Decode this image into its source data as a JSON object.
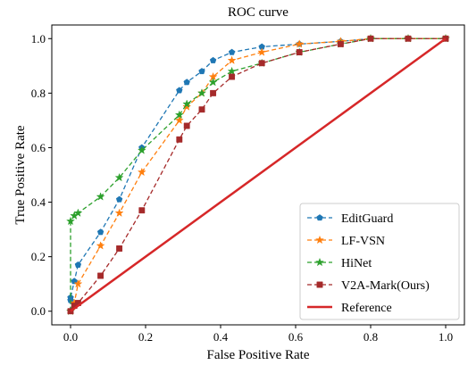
{
  "chart_data": {
    "type": "line",
    "title": "ROC curve",
    "xlabel": "False Positive Rate",
    "ylabel": "True Positive Rate",
    "xlim": [
      -0.05,
      1.05
    ],
    "ylim": [
      -0.05,
      1.05
    ],
    "xticks": [
      "0.0",
      "0.2",
      "0.4",
      "0.6",
      "0.8",
      "1.0"
    ],
    "yticks": [
      "0.0",
      "0.2",
      "0.4",
      "0.6",
      "0.8",
      "1.0"
    ],
    "grid": false,
    "legend_position": "lower-right",
    "series": [
      {
        "name": "EditGuard",
        "color": "#1f77b4",
        "marker": "pentagon",
        "linestyle": "dashed",
        "x": [
          0.0,
          0.0,
          0.0,
          0.01,
          0.02,
          0.08,
          0.13,
          0.19,
          0.29,
          0.31,
          0.35,
          0.38,
          0.43,
          0.51,
          0.61,
          0.72,
          0.8,
          0.9,
          1.0
        ],
        "y": [
          0.0,
          0.04,
          0.05,
          0.11,
          0.17,
          0.29,
          0.41,
          0.6,
          0.81,
          0.84,
          0.88,
          0.92,
          0.95,
          0.97,
          0.98,
          0.99,
          1.0,
          1.0,
          1.0
        ]
      },
      {
        "name": "LF-VSN",
        "color": "#ff7f0e",
        "marker": "star",
        "linestyle": "dashed",
        "x": [
          0.0,
          0.01,
          0.02,
          0.08,
          0.13,
          0.19,
          0.29,
          0.31,
          0.35,
          0.38,
          0.43,
          0.51,
          0.61,
          0.72,
          0.8,
          0.9,
          1.0
        ],
        "y": [
          0.0,
          0.03,
          0.1,
          0.24,
          0.36,
          0.51,
          0.7,
          0.75,
          0.8,
          0.86,
          0.92,
          0.95,
          0.98,
          0.99,
          1.0,
          1.0,
          1.0
        ]
      },
      {
        "name": "HiNet",
        "color": "#2ca02c",
        "marker": "star",
        "linestyle": "dashed",
        "x": [
          0.0,
          0.0,
          0.01,
          0.02,
          0.08,
          0.13,
          0.19,
          0.29,
          0.31,
          0.35,
          0.38,
          0.43,
          0.51,
          0.61,
          0.72,
          0.8,
          0.9,
          1.0
        ],
        "y": [
          0.0,
          0.33,
          0.35,
          0.36,
          0.42,
          0.49,
          0.59,
          0.72,
          0.76,
          0.8,
          0.84,
          0.88,
          0.91,
          0.95,
          0.98,
          1.0,
          1.0,
          1.0
        ]
      },
      {
        "name": "V2A-Mark(Ours)",
        "color": "#a52a2a",
        "marker": "square",
        "linestyle": "dashed",
        "x": [
          0.0,
          0.01,
          0.02,
          0.08,
          0.13,
          0.19,
          0.29,
          0.31,
          0.35,
          0.38,
          0.43,
          0.51,
          0.61,
          0.72,
          0.8,
          0.9,
          1.0
        ],
        "y": [
          0.0,
          0.02,
          0.03,
          0.13,
          0.23,
          0.37,
          0.63,
          0.68,
          0.74,
          0.8,
          0.86,
          0.91,
          0.95,
          0.98,
          1.0,
          1.0,
          1.0
        ]
      },
      {
        "name": "Reference",
        "color": "#d62728",
        "marker": "none",
        "linestyle": "solid",
        "x": [
          0.0,
          1.0
        ],
        "y": [
          0.0,
          1.0
        ]
      }
    ]
  }
}
